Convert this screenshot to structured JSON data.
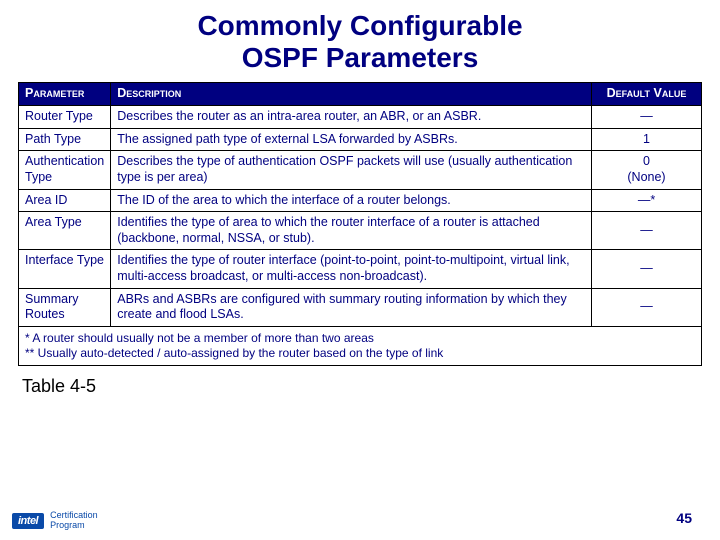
{
  "title_line1": "Commonly Configurable",
  "title_line2": "OSPF Parameters",
  "headers": {
    "param": "Parameter",
    "desc": "Description",
    "default": "Default Value"
  },
  "rows": [
    {
      "param": "Router Type",
      "desc": "Describes the router as an intra-area router, an ABR, or an ASBR.",
      "default": "—"
    },
    {
      "param": "Path Type",
      "desc": "The assigned path type of external LSA forwarded by ASBRs.",
      "default": "1"
    },
    {
      "param": "Authentication Type",
      "desc": "Describes the type of authentication OSPF packets will use (usually authentication type is per area)",
      "default": "0\n(None)"
    },
    {
      "param": "Area ID",
      "desc": "The ID of the area to which the interface of a router belongs.",
      "default": "—*"
    },
    {
      "param": "Area Type",
      "desc": "Identifies the type of area to which the router interface of a router is attached (backbone, normal, NSSA, or stub).",
      "default": "—"
    },
    {
      "param": "Interface Type",
      "desc": "Identifies the type of router interface (point-to-point, point-to-multipoint, virtual link, multi-access broadcast, or multi-access non-broadcast).",
      "default": "—"
    },
    {
      "param": "Summary Routes",
      "desc": "ABRs and ASBRs are configured with summary routing information by which they create and flood LSAs.",
      "default": "—"
    }
  ],
  "footnote_line1": "* A router should usually not be a member of more than two areas",
  "footnote_line2": "** Usually auto-detected / auto-assigned by the router based on the type of link",
  "caption": "Table 4-5",
  "page_number": "45",
  "logo_text": "intel",
  "cert_line1": "Certification",
  "cert_line2": "Program"
}
